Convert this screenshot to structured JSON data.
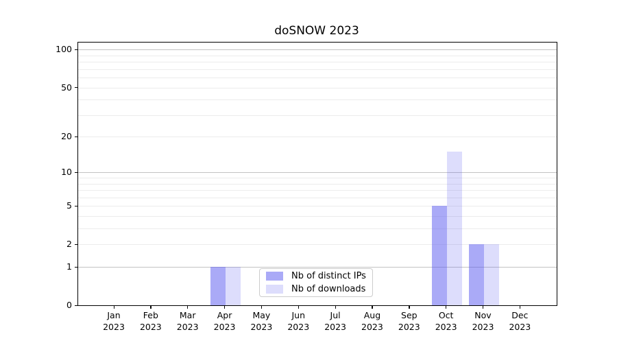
{
  "page": {
    "title": "doSNOW 2023"
  },
  "chart_data": {
    "type": "bar",
    "title": "doSNOW 2023",
    "categories": [
      "Jan",
      "Feb",
      "Mar",
      "Apr",
      "May",
      "Jun",
      "Jul",
      "Aug",
      "Sep",
      "Oct",
      "Nov",
      "Dec"
    ],
    "category_sublabel": "2023",
    "series": [
      {
        "name": "Nb of distinct IPs",
        "key": "distinct-ips",
        "color": "rgba(85,85,240,0.50)",
        "values": [
          0,
          0,
          0,
          1,
          0,
          0,
          0,
          0,
          0,
          5,
          2,
          0
        ]
      },
      {
        "name": "Nb of downloads",
        "key": "downloads",
        "color": "rgba(85,85,240,0.20)",
        "values": [
          0,
          0,
          0,
          1,
          0,
          0,
          0,
          0,
          0,
          15,
          2,
          0
        ]
      }
    ],
    "y_axis": {
      "scale": "log1p",
      "ticks": [
        0,
        1,
        2,
        5,
        10,
        20,
        50,
        100
      ],
      "major_gridlines": [
        1,
        10,
        100
      ],
      "minor_gridlines": [
        2,
        3,
        4,
        5,
        6,
        7,
        8,
        9,
        20,
        30,
        40,
        50,
        60,
        70,
        80,
        90
      ],
      "range": [
        0,
        114
      ]
    },
    "legend": {
      "position": "lower center",
      "entries": [
        "Nb of distinct IPs",
        "Nb of downloads"
      ]
    },
    "grid": "horizontal",
    "colors": {
      "bar_distinct_ips": "rgba(85,85,240,0.50)",
      "bar_downloads": "rgba(85,85,240,0.20)",
      "major_grid": "#c3c3c3",
      "minor_grid": "#ececec",
      "axis": "#000000",
      "text": "#000000",
      "legend_border": "#cccccc",
      "background": "#ffffff"
    }
  }
}
